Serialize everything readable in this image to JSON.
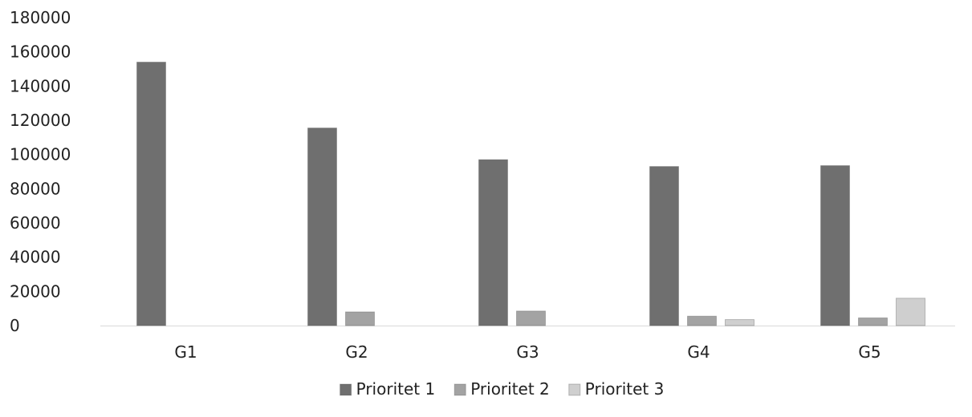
{
  "chart_data": {
    "type": "bar",
    "title": "",
    "xlabel": "",
    "ylabel": "",
    "categories": [
      "G1",
      "G2",
      "G3",
      "G4",
      "G5"
    ],
    "ylim": [
      0,
      180000
    ],
    "yticks": [
      0,
      20000,
      40000,
      60000,
      80000,
      100000,
      120000,
      140000,
      160000,
      180000
    ],
    "grid": false,
    "legend_position": "bottom",
    "series": [
      {
        "name": "Prioritet 1",
        "color": "#6f6f6f",
        "values": [
          154000,
          115500,
          97000,
          93000,
          93500
        ]
      },
      {
        "name": "Prioritet 2",
        "color": "#a3a3a3",
        "values": [
          0,
          8000,
          8500,
          5500,
          4500
        ]
      },
      {
        "name": "Prioritet 3",
        "color": "#cfcfcf",
        "values": [
          0,
          0,
          0,
          3500,
          16000
        ]
      }
    ]
  }
}
